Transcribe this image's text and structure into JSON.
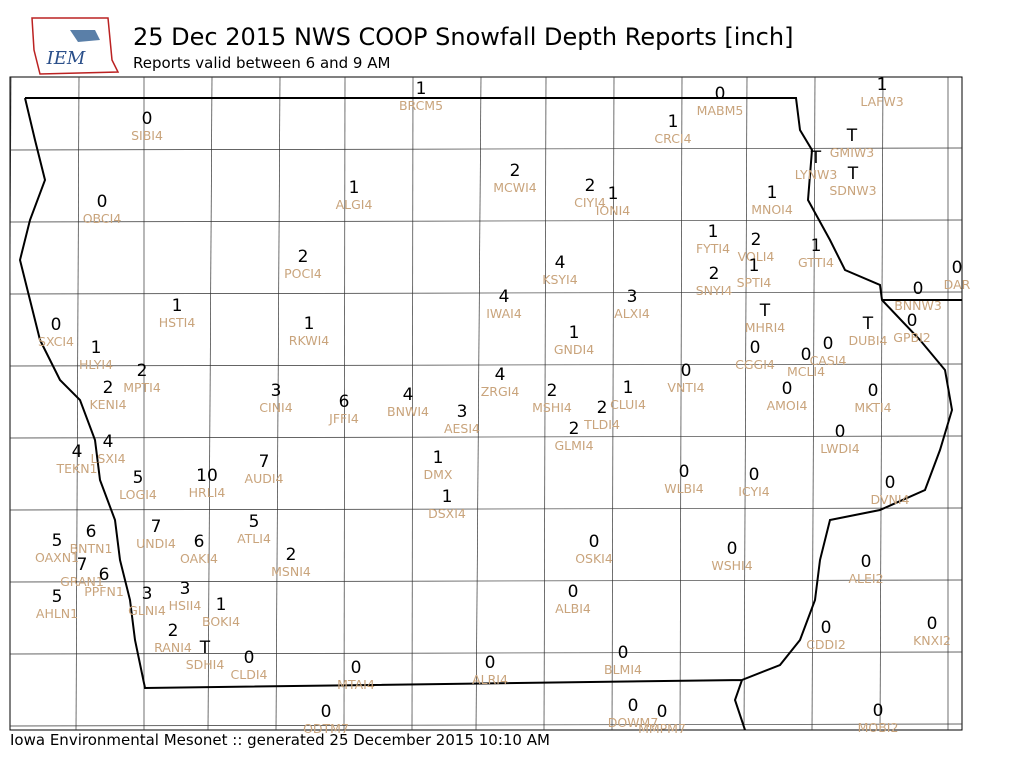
{
  "header": {
    "logo": "IEM",
    "title": "25 Dec 2015 NWS COOP Snowfall Depth Reports [inch]",
    "subtitle": "Reports valid between 6 and 9 AM"
  },
  "footer": "Iowa Environmental Mesonet :: generated 25 December 2015 10:10 AM",
  "stations": [
    {
      "id": "BRCM5",
      "value": 1
    },
    {
      "id": "MABM5",
      "value": 0
    },
    {
      "id": "LAFW3",
      "value": 1
    },
    {
      "id": "SIBI4",
      "value": 0
    },
    {
      "id": "CRCI4",
      "value": 1
    },
    {
      "id": "GMIW3",
      "value": "T"
    },
    {
      "id": "LYNW3",
      "value": "T"
    },
    {
      "id": "SDNW3",
      "value": "T"
    },
    {
      "id": "MCWI4",
      "value": 2
    },
    {
      "id": "OBCI4",
      "value": 0
    },
    {
      "id": "ALGI4",
      "value": 1
    },
    {
      "id": "CIYI4",
      "value": 2
    },
    {
      "id": "IONI4",
      "value": 1
    },
    {
      "id": "MNOI4",
      "value": 1
    },
    {
      "id": "FYTI4",
      "value": 1
    },
    {
      "id": "VOLI4",
      "value": 2
    },
    {
      "id": "GTTI4",
      "value": 1
    },
    {
      "id": "POCI4",
      "value": 2
    },
    {
      "id": "KSYI4",
      "value": 4
    },
    {
      "id": "SPTI4",
      "value": 1
    },
    {
      "id": "SNYI4",
      "value": 2
    },
    {
      "id": "DAR",
      "value": 0
    },
    {
      "id": "BNNW3",
      "value": 0
    },
    {
      "id": "HSTI4",
      "value": 1
    },
    {
      "id": "IWAI4",
      "value": 4
    },
    {
      "id": "ALXI4",
      "value": 3
    },
    {
      "id": "MHRI4",
      "value": "T"
    },
    {
      "id": "SXCI4",
      "value": 0
    },
    {
      "id": "RKWI4",
      "value": 1
    },
    {
      "id": "GNDI4",
      "value": 1
    },
    {
      "id": "DUBI4",
      "value": "T"
    },
    {
      "id": "GPBI2",
      "value": 0
    },
    {
      "id": "CASI4",
      "value": 0
    },
    {
      "id": "CGGI4",
      "value": 0
    },
    {
      "id": "MCLI4",
      "value": 0
    },
    {
      "id": "HLYI4",
      "value": 1
    },
    {
      "id": "MPTI4",
      "value": 2
    },
    {
      "id": "VNTI4",
      "value": 0
    },
    {
      "id": "ZRGI4",
      "value": 4
    },
    {
      "id": "KENI4",
      "value": 2
    },
    {
      "id": "CINI4",
      "value": 3
    },
    {
      "id": "JFFI4",
      "value": 6
    },
    {
      "id": "BNWI4",
      "value": 4
    },
    {
      "id": "MSHI4",
      "value": 2
    },
    {
      "id": "CLUI4",
      "value": 1
    },
    {
      "id": "AMOI4",
      "value": 0
    },
    {
      "id": "MKTI4",
      "value": 0
    },
    {
      "id": "AESI4",
      "value": 3
    },
    {
      "id": "TLDI4",
      "value": 2
    },
    {
      "id": "GLMI4",
      "value": 2
    },
    {
      "id": "LWDI4",
      "value": 0
    },
    {
      "id": "TEKN1",
      "value": 4
    },
    {
      "id": "LSXI4",
      "value": 4
    },
    {
      "id": "DMX",
      "value": 1
    },
    {
      "id": "LOGI4",
      "value": 5
    },
    {
      "id": "HRLI4",
      "value": 10
    },
    {
      "id": "AUDI4",
      "value": 7
    },
    {
      "id": "WLBI4",
      "value": 0
    },
    {
      "id": "ICYI4",
      "value": 0
    },
    {
      "id": "DVNI4",
      "value": 0
    },
    {
      "id": "DSXI4",
      "value": 1
    },
    {
      "id": "UNDI4",
      "value": 7
    },
    {
      "id": "BNTN1",
      "value": 6
    },
    {
      "id": "ATLI4",
      "value": 5
    },
    {
      "id": "OAKI4",
      "value": 6
    },
    {
      "id": "OAXN1",
      "value": 5
    },
    {
      "id": "GRAN1",
      "value": 7
    },
    {
      "id": "PPFN1",
      "value": 6
    },
    {
      "id": "MSNI4",
      "value": 2
    },
    {
      "id": "OSKI4",
      "value": 0
    },
    {
      "id": "WSHI4",
      "value": 0
    },
    {
      "id": "ALEI2",
      "value": 0
    },
    {
      "id": "GLNI4",
      "value": 3
    },
    {
      "id": "HSII4",
      "value": 3
    },
    {
      "id": "BOKI4",
      "value": 1
    },
    {
      "id": "AHLN1",
      "value": 5
    },
    {
      "id": "ALBI4",
      "value": 0
    },
    {
      "id": "KNXI2",
      "value": 0
    },
    {
      "id": "CDDI2",
      "value": 0
    },
    {
      "id": "RANI4",
      "value": 2
    },
    {
      "id": "SDHI4",
      "value": "T"
    },
    {
      "id": "CLDI4",
      "value": 0
    },
    {
      "id": "BLMI4",
      "value": 0
    },
    {
      "id": "MTAI4",
      "value": 0
    },
    {
      "id": "ALRI4",
      "value": 0
    },
    {
      "id": "DOWM7",
      "value": 0
    },
    {
      "id": "MMPM7",
      "value": 0
    },
    {
      "id": "MOBI2",
      "value": 0
    },
    {
      "id": "ODTM7",
      "value": 0
    }
  ]
}
